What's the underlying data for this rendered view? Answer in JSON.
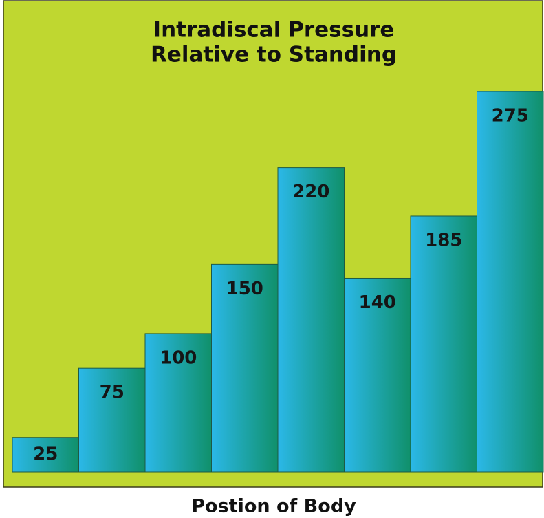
{
  "chart_data": {
    "type": "bar",
    "title": [
      "Intradiscal Pressure",
      "Relative to Standing"
    ],
    "x_label": "Postion of Body",
    "categories": [
      null,
      null,
      null,
      null,
      null,
      null,
      null,
      null
    ],
    "values": [
      25,
      75,
      100,
      150,
      220,
      140,
      185,
      275
    ],
    "color": [
      "#2bb8e8",
      "#10906a"
    ],
    "background": "#bfd730"
  }
}
